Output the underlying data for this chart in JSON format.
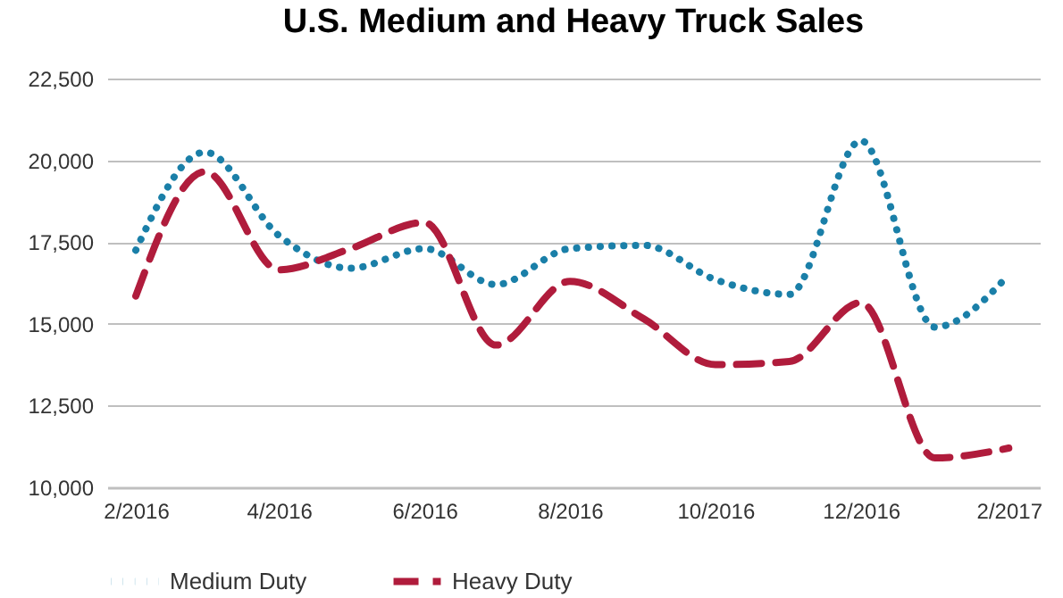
{
  "chart_data": {
    "type": "line",
    "title": "U.S. Medium and Heavy Truck Sales",
    "x": [
      "2016-02",
      "2016-03",
      "2016-04",
      "2016-05",
      "2016-06",
      "2016-07",
      "2016-08",
      "2016-09",
      "2016-10",
      "2016-11",
      "2016-12",
      "2017-01",
      "2017-02"
    ],
    "series": [
      {
        "name": "Medium Duty",
        "color": "#1a7fa8",
        "line_style": "dotted",
        "values": [
          17250,
          20250,
          17700,
          16700,
          17300,
          16200,
          17300,
          17400,
          16350,
          15900,
          20600,
          14900,
          16500
        ]
      },
      {
        "name": "Heavy Duty",
        "color": "#b01c3c",
        "line_style": "dashed",
        "values": [
          15850,
          19650,
          16650,
          17300,
          18100,
          14350,
          16300,
          15150,
          13750,
          13850,
          15650,
          10900,
          11200
        ]
      }
    ],
    "xlim": [
      "2016-01-20",
      "2017-02-14"
    ],
    "xticks": [
      {
        "value": "2016-02",
        "label": "2/2016"
      },
      {
        "value": "2016-04",
        "label": "4/2016"
      },
      {
        "value": "2016-06",
        "label": "6/2016"
      },
      {
        "value": "2016-08",
        "label": "8/2016"
      },
      {
        "value": "2016-10",
        "label": "10/2016"
      },
      {
        "value": "2016-12",
        "label": "12/2016"
      },
      {
        "value": "2017-02",
        "label": "2/2017"
      }
    ],
    "ylim": [
      10000,
      22500
    ],
    "yticks": [
      {
        "value": 10000,
        "label": "10,000"
      },
      {
        "value": 12500,
        "label": "12,500"
      },
      {
        "value": 15000,
        "label": "15,000"
      },
      {
        "value": 17500,
        "label": "17,500"
      },
      {
        "value": 20000,
        "label": "20,000"
      },
      {
        "value": 22500,
        "label": "22,500"
      }
    ],
    "grid": "y",
    "legend": "bottom",
    "marker": "none"
  }
}
